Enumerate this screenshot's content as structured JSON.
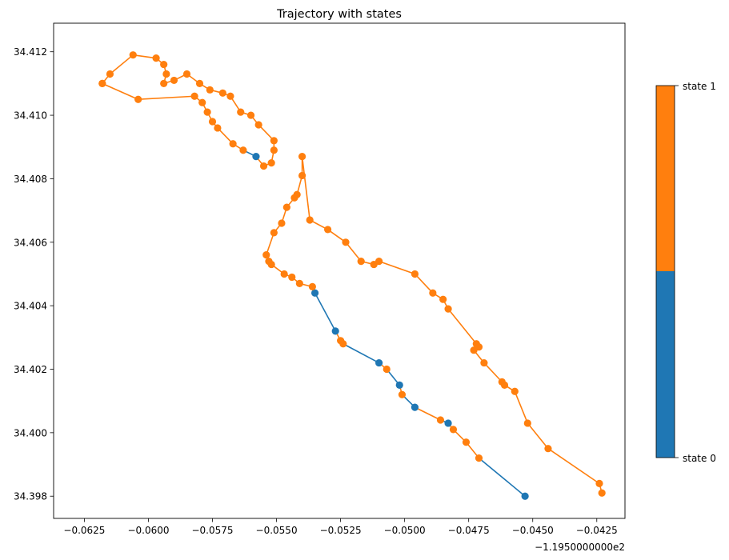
{
  "chart_data": {
    "type": "line",
    "title": "Trajectory with states",
    "xlabel": "",
    "ylabel": "",
    "x_offset_label": "−1.1950000000e2",
    "x_offset": -119.5,
    "xlim": [
      -0.0637,
      -0.0414
    ],
    "ylim": [
      34.3973,
      34.4129
    ],
    "x_ticks": [
      -0.0625,
      -0.06,
      -0.0575,
      -0.055,
      -0.0525,
      -0.05,
      -0.0475,
      -0.045,
      -0.0425
    ],
    "x_tick_labels": [
      "−0.0625",
      "−0.0600",
      "−0.0575",
      "−0.0550",
      "−0.0525",
      "−0.0500",
      "−0.0475",
      "−0.0450",
      "−0.0425"
    ],
    "y_ticks": [
      34.398,
      34.4,
      34.402,
      34.404,
      34.406,
      34.408,
      34.41,
      34.412
    ],
    "y_tick_labels": [
      "34.398",
      "34.400",
      "34.402",
      "34.404",
      "34.406",
      "34.408",
      "34.410",
      "34.412"
    ],
    "grid": false,
    "colors": {
      "state 0": "#1f77b4",
      "state 1": "#ff7f0e"
    },
    "colorbar": {
      "labels": [
        "state 0",
        "state 1"
      ],
      "colors": [
        "#1f77b4",
        "#ff7f0e"
      ]
    },
    "points": [
      [
        -0.0453,
        34.398,
        0
      ],
      [
        -0.0471,
        34.3992,
        1
      ],
      [
        -0.0476,
        34.3997,
        1
      ],
      [
        -0.0481,
        34.4001,
        1
      ],
      [
        -0.0483,
        34.4003,
        0
      ],
      [
        -0.0486,
        34.4004,
        1
      ],
      [
        -0.0496,
        34.4008,
        0
      ],
      [
        -0.0501,
        34.4012,
        1
      ],
      [
        -0.0502,
        34.4015,
        0
      ],
      [
        -0.0507,
        34.402,
        1
      ],
      [
        -0.051,
        34.4022,
        0
      ],
      [
        -0.0524,
        34.4028,
        1
      ],
      [
        -0.0525,
        34.4029,
        1
      ],
      [
        -0.0527,
        34.4032,
        0
      ],
      [
        -0.0535,
        34.4044,
        0
      ],
      [
        -0.0536,
        34.4046,
        1
      ],
      [
        -0.0541,
        34.4047,
        1
      ],
      [
        -0.0544,
        34.4049,
        1
      ],
      [
        -0.0547,
        34.405,
        1
      ],
      [
        -0.0552,
        34.4053,
        1
      ],
      [
        -0.0553,
        34.4054,
        1
      ],
      [
        -0.0554,
        34.4056,
        1
      ],
      [
        -0.0551,
        34.4063,
        1
      ],
      [
        -0.0548,
        34.4066,
        1
      ],
      [
        -0.0546,
        34.4071,
        1
      ],
      [
        -0.0543,
        34.4074,
        1
      ],
      [
        -0.0542,
        34.4075,
        1
      ],
      [
        -0.054,
        34.4081,
        1
      ],
      [
        -0.054,
        34.4087,
        1
      ],
      [
        -0.0537,
        34.4067,
        1
      ],
      [
        -0.053,
        34.4064,
        1
      ],
      [
        -0.0523,
        34.406,
        1
      ],
      [
        -0.0517,
        34.4054,
        1
      ],
      [
        -0.0512,
        34.4053,
        1
      ],
      [
        -0.051,
        34.4054,
        1
      ],
      [
        -0.0496,
        34.405,
        1
      ],
      [
        -0.0489,
        34.4044,
        1
      ],
      [
        -0.0485,
        34.4042,
        1
      ],
      [
        -0.0483,
        34.4039,
        1
      ],
      [
        -0.0472,
        34.4028,
        1
      ],
      [
        -0.0471,
        34.4027,
        1
      ],
      [
        -0.0473,
        34.4026,
        1
      ],
      [
        -0.0469,
        34.4022,
        1
      ],
      [
        -0.0462,
        34.4016,
        1
      ],
      [
        -0.0461,
        34.4015,
        1
      ],
      [
        -0.0457,
        34.4013,
        1
      ],
      [
        -0.0452,
        34.4003,
        1
      ],
      [
        -0.0444,
        34.3995,
        1
      ],
      [
        -0.0424,
        34.3984,
        1
      ],
      [
        -0.0423,
        34.3981,
        1
      ]
    ],
    "extra_points": [
      [
        -0.0618,
        34.411,
        1
      ],
      [
        -0.0615,
        34.4113,
        1
      ],
      [
        -0.0606,
        34.4119,
        1
      ],
      [
        -0.0597,
        34.4118,
        1
      ],
      [
        -0.0594,
        34.4116,
        1
      ],
      [
        -0.0593,
        34.4113,
        1
      ],
      [
        -0.0594,
        34.411,
        1
      ],
      [
        -0.059,
        34.4111,
        1
      ],
      [
        -0.0585,
        34.4113,
        1
      ],
      [
        -0.058,
        34.411,
        1
      ],
      [
        -0.0576,
        34.4108,
        1
      ],
      [
        -0.0571,
        34.4107,
        1
      ],
      [
        -0.0568,
        34.4106,
        1
      ],
      [
        -0.0564,
        34.4101,
        1
      ],
      [
        -0.056,
        34.41,
        1
      ],
      [
        -0.0557,
        34.4097,
        1
      ],
      [
        -0.0551,
        34.4092,
        1
      ],
      [
        -0.0551,
        34.4089,
        1
      ],
      [
        -0.0552,
        34.4085,
        1
      ],
      [
        -0.0555,
        34.4084,
        1
      ],
      [
        -0.0558,
        34.4087,
        0
      ],
      [
        -0.0563,
        34.4089,
        1
      ],
      [
        -0.0567,
        34.4091,
        1
      ],
      [
        -0.0573,
        34.4096,
        1
      ],
      [
        -0.0575,
        34.4098,
        1
      ],
      [
        -0.0577,
        34.4101,
        1
      ],
      [
        -0.0579,
        34.4104,
        1
      ],
      [
        -0.0582,
        34.4106,
        1
      ],
      [
        -0.0604,
        34.4105,
        1
      ],
      [
        -0.0618,
        34.411,
        1
      ]
    ]
  }
}
